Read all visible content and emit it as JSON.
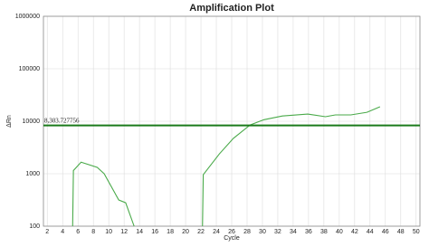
{
  "chart_data": {
    "type": "line",
    "title": "Amplification Plot",
    "x_label": "Cycle",
    "y_label": "ΔRn",
    "log_y": true,
    "grid": true,
    "xlim": [
      1.5,
      50.5
    ],
    "xticks": [
      2,
      4,
      6,
      8,
      10,
      12,
      14,
      16,
      18,
      20,
      22,
      24,
      26,
      28,
      30,
      32,
      34,
      36,
      38,
      40,
      42,
      44,
      46,
      48,
      50
    ],
    "ylim": [
      100,
      1000000
    ],
    "yticks": [
      100,
      1000,
      10000,
      100000,
      1000000
    ],
    "threshold": {
      "value": 8303.727756,
      "label": "8,303.727756",
      "color": "#1a7a1a",
      "label_color": "#d00000"
    },
    "series": [
      {
        "color": "#4aaa4a",
        "x": [
          5.3,
          5.4,
          6.4,
          8.5,
          9.4,
          11.3,
          12.2,
          13.3,
          null,
          22.2,
          22.3,
          24.4,
          26.2,
          28.4,
          30.2,
          32.6,
          35.9,
          38.2,
          39.5,
          41.5,
          43.6,
          45.3
        ],
        "values": [
          100,
          1150,
          1660,
          1320,
          1000,
          316,
          280,
          100,
          null,
          100,
          960,
          2390,
          4700,
          8500,
          10700,
          12600,
          13700,
          12200,
          13200,
          13200,
          14800,
          18900
        ]
      }
    ]
  }
}
